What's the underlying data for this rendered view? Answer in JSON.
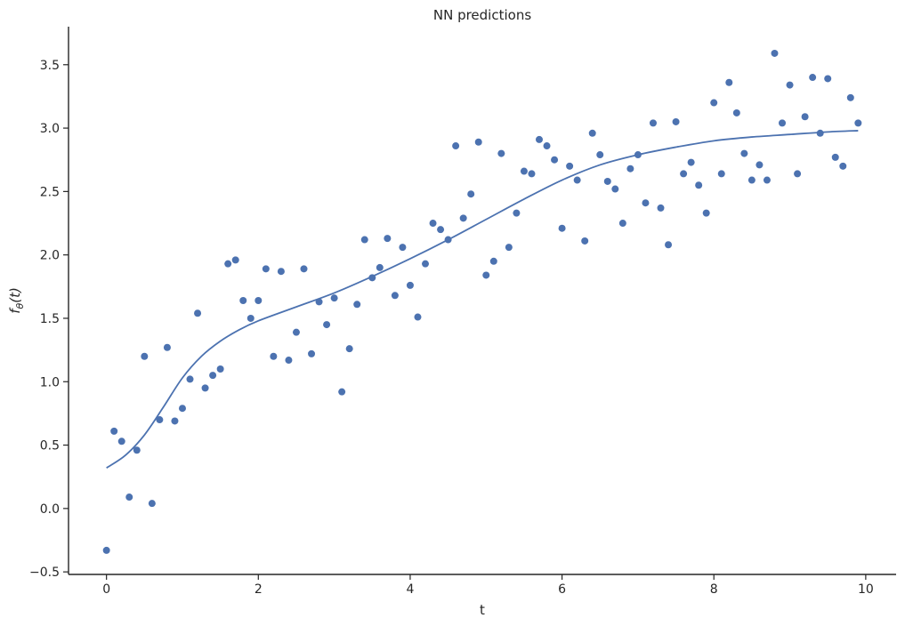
{
  "chart_data": {
    "type": "scatter",
    "title": "NN predictions",
    "xlabel": "t",
    "ylabel_main": "f",
    "ylabel_sub": "θ",
    "ylabel_arg": "(t)",
    "xlim": [
      -0.5,
      10.4
    ],
    "ylim": [
      -0.52,
      3.8
    ],
    "xticks": [
      0,
      2,
      4,
      6,
      8,
      10
    ],
    "yticks": [
      -0.5,
      0.0,
      0.5,
      1.0,
      1.5,
      2.0,
      2.5,
      3.0,
      3.5
    ],
    "xtick_labels": [
      "0",
      "2",
      "4",
      "6",
      "8",
      "10"
    ],
    "ytick_labels": [
      "−0.5",
      "0.0",
      "0.5",
      "1.0",
      "1.5",
      "2.0",
      "2.5",
      "3.0",
      "3.5"
    ],
    "grid": false,
    "colors": {
      "points": "#4c72b0",
      "line": "#4c72b0",
      "axes": "#262626"
    },
    "points": {
      "x": [
        0.0,
        0.1,
        0.2,
        0.3,
        0.4,
        0.5,
        0.6,
        0.7,
        0.8,
        0.9,
        1.0,
        1.1,
        1.2,
        1.3,
        1.4,
        1.5,
        1.6,
        1.7,
        1.8,
        1.9,
        2.0,
        2.1,
        2.2,
        2.3,
        2.4,
        2.5,
        2.6,
        2.7,
        2.8,
        2.9,
        3.0,
        3.1,
        3.2,
        3.3,
        3.4,
        3.5,
        3.6,
        3.7,
        3.8,
        3.9,
        4.0,
        4.1,
        4.2,
        4.3,
        4.4,
        4.5,
        4.6,
        4.7,
        4.8,
        4.9,
        5.0,
        5.1,
        5.2,
        5.3,
        5.4,
        5.5,
        5.6,
        5.7,
        5.8,
        5.9,
        6.0,
        6.1,
        6.2,
        6.3,
        6.4,
        6.5,
        6.6,
        6.7,
        6.8,
        6.9,
        7.0,
        7.1,
        7.2,
        7.3,
        7.4,
        7.5,
        7.6,
        7.7,
        7.8,
        7.9,
        8.0,
        8.1,
        8.2,
        8.3,
        8.4,
        8.5,
        8.6,
        8.7,
        8.8,
        8.9,
        9.0,
        9.1,
        9.2,
        9.3,
        9.4,
        9.5,
        9.6,
        9.7,
        9.8,
        9.9
      ],
      "y": [
        -0.33,
        0.61,
        0.53,
        0.09,
        0.46,
        1.2,
        0.04,
        0.7,
        1.27,
        0.69,
        0.79,
        1.02,
        1.54,
        0.95,
        1.05,
        1.1,
        1.93,
        1.96,
        1.64,
        1.5,
        1.64,
        1.89,
        1.2,
        1.87,
        1.17,
        1.39,
        1.89,
        1.22,
        1.63,
        1.45,
        1.66,
        0.92,
        1.26,
        1.61,
        2.12,
        1.82,
        1.9,
        2.13,
        1.68,
        2.06,
        1.76,
        1.51,
        1.93,
        2.25,
        2.2,
        2.12,
        2.86,
        2.29,
        2.48,
        2.89,
        1.84,
        1.95,
        2.8,
        2.06,
        2.33,
        2.66,
        2.64,
        2.91,
        2.86,
        2.75,
        2.21,
        2.7,
        2.59,
        2.11,
        2.96,
        2.79,
        2.58,
        2.52,
        2.25,
        2.68,
        2.79,
        2.41,
        3.04,
        2.37,
        2.08,
        3.05,
        2.64,
        2.73,
        2.55,
        2.33,
        3.2,
        2.64,
        3.36,
        3.12,
        2.8,
        2.59,
        2.71,
        2.59,
        3.59,
        3.04,
        3.34,
        2.64,
        3.09,
        3.4,
        2.96,
        3.39,
        2.77,
        2.7,
        3.24,
        3.04
      ]
    },
    "curve": {
      "x": [
        0.0,
        0.25,
        0.5,
        0.75,
        1.0,
        1.25,
        1.5,
        1.75,
        2.0,
        2.5,
        3.0,
        3.5,
        4.0,
        4.5,
        5.0,
        5.5,
        6.0,
        6.5,
        7.0,
        7.5,
        8.0,
        8.5,
        9.0,
        9.5,
        9.9
      ],
      "y": [
        0.32,
        0.42,
        0.58,
        0.8,
        1.03,
        1.2,
        1.32,
        1.41,
        1.48,
        1.59,
        1.7,
        1.83,
        1.97,
        2.12,
        2.28,
        2.44,
        2.59,
        2.71,
        2.79,
        2.85,
        2.9,
        2.93,
        2.95,
        2.97,
        2.98
      ]
    }
  }
}
